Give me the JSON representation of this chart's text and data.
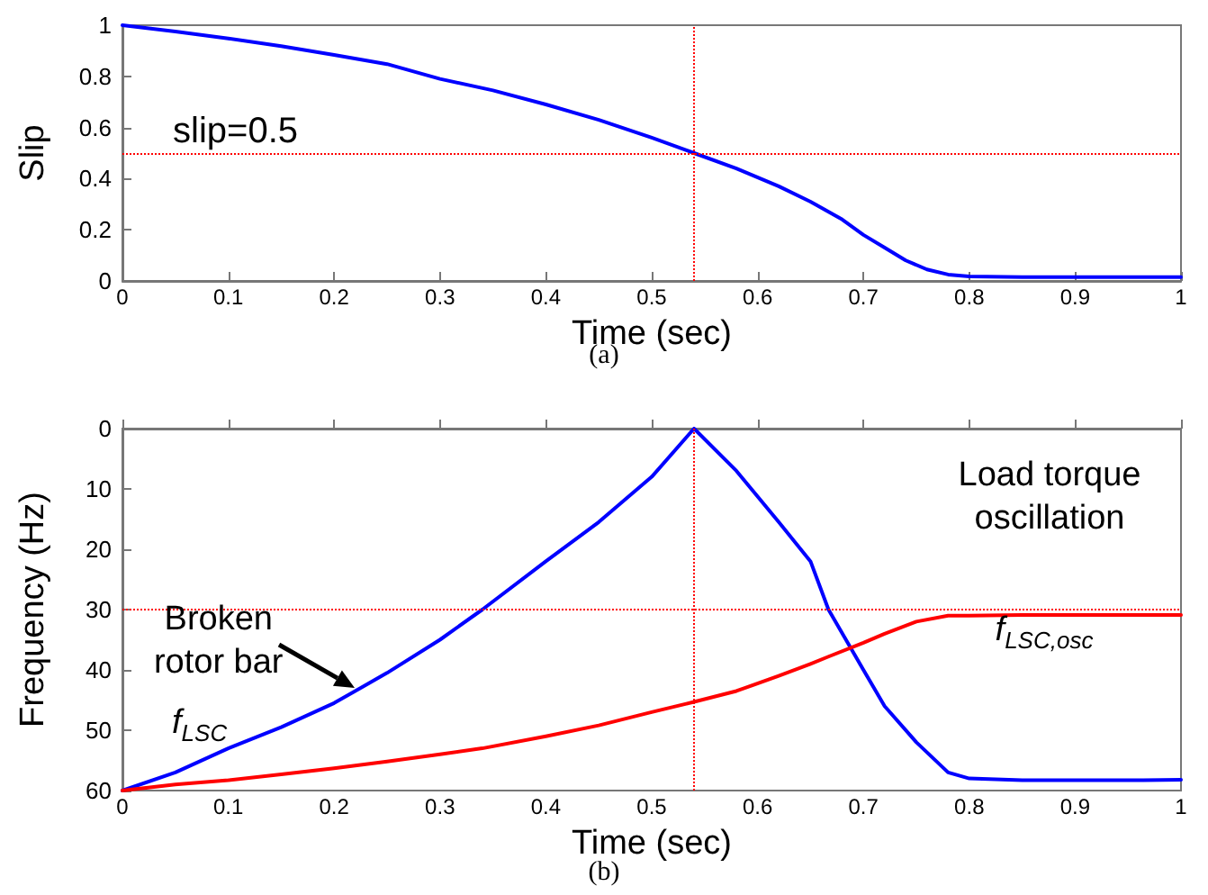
{
  "chart_data": [
    {
      "type": "line",
      "title": "(a)",
      "xlabel": "Time (sec)",
      "ylabel": "Slip",
      "marker": "none",
      "line_style": "solid",
      "grid": false,
      "legend": false,
      "x": [
        0,
        0.05,
        0.1,
        0.15,
        0.2,
        0.25,
        0.3,
        0.35,
        0.4,
        0.45,
        0.5,
        0.54,
        0.58,
        0.62,
        0.65,
        0.68,
        0.7,
        0.72,
        0.74,
        0.76,
        0.78,
        0.8,
        0.85,
        0.9,
        0.95,
        1
      ],
      "series": [
        {
          "color": "#0000ff",
          "values": [
            1,
            0.975,
            0.948,
            0.918,
            0.884,
            0.848,
            0.79,
            0.745,
            0.69,
            0.63,
            0.56,
            0.5,
            0.44,
            0.37,
            0.31,
            0.24,
            0.18,
            0.13,
            0.08,
            0.045,
            0.025,
            0.018,
            0.015,
            0.015,
            0.015,
            0.015
          ]
        }
      ],
      "xlim": [
        0,
        1
      ],
      "xticks": [
        0,
        0.1,
        0.2,
        0.3,
        0.4,
        0.5,
        0.6,
        0.7,
        0.8,
        0.9,
        1
      ],
      "ylim": [
        0,
        1
      ],
      "yticks": [
        0,
        0.2,
        0.4,
        0.6,
        0.8,
        1
      ],
      "ref_lines": [
        {
          "axis": "y",
          "value": 0.5,
          "label": "slip=0.5",
          "color": "#ff0000",
          "line_style": "dotted"
        },
        {
          "axis": "x",
          "value": 0.54,
          "label": null,
          "color": "#ff0000",
          "line_style": "dotted"
        }
      ]
    },
    {
      "type": "line",
      "title": "(b)",
      "xlabel": "Time (sec)",
      "ylabel": "Frequency (Hz)",
      "marker": "none",
      "line_style": "solid",
      "grid": false,
      "legend": false,
      "x": [
        0,
        0.05,
        0.1,
        0.15,
        0.2,
        0.25,
        0.3,
        0.34,
        0.4,
        0.45,
        0.5,
        0.54,
        0.58,
        0.62,
        0.65,
        0.667,
        0.7,
        0.72,
        0.75,
        0.78,
        0.8,
        0.85,
        0.9,
        0.95,
        1
      ],
      "series": [
        {
          "color": "#0000ff",
          "values": [
            60,
            57,
            53,
            49.5,
            45.5,
            40.5,
            35,
            30,
            22,
            15.5,
            8,
            0,
            7,
            15.5,
            22,
            30,
            40,
            46,
            52,
            57,
            58,
            58.3,
            58.3,
            58.3,
            58.2
          ]
        },
        {
          "color": "#ff0000",
          "values": [
            60,
            59,
            58.3,
            57.3,
            56.3,
            55.2,
            54,
            53,
            51,
            49.2,
            47,
            45.3,
            43.5,
            41,
            39,
            37.8,
            35.5,
            34,
            32,
            31,
            31,
            30.9,
            30.9,
            30.9,
            30.9
          ]
        }
      ],
      "xlim": [
        0,
        1
      ],
      "xticks": [
        0,
        0.1,
        0.2,
        0.3,
        0.4,
        0.5,
        0.6,
        0.7,
        0.8,
        0.9,
        1
      ],
      "ylim": [
        60,
        0
      ],
      "yticks": [
        0,
        10,
        20,
        30,
        40,
        50,
        60
      ],
      "ref_lines": [
        {
          "axis": "y",
          "value": 30,
          "label": null,
          "color": "#ff0000",
          "line_style": "dotted"
        },
        {
          "axis": "x",
          "value": 0.54,
          "label": null,
          "color": "#ff0000",
          "line_style": "dotted"
        }
      ],
      "annotations": [
        {
          "text": "Broken rotor bar",
          "x": 0.22,
          "y": 43
        },
        {
          "text": "f$_{LSC}$",
          "x": 0.1,
          "y": 53
        },
        "Load torque oscillation",
        "f$_{LSC,osc}$"
      ]
    }
  ]
}
